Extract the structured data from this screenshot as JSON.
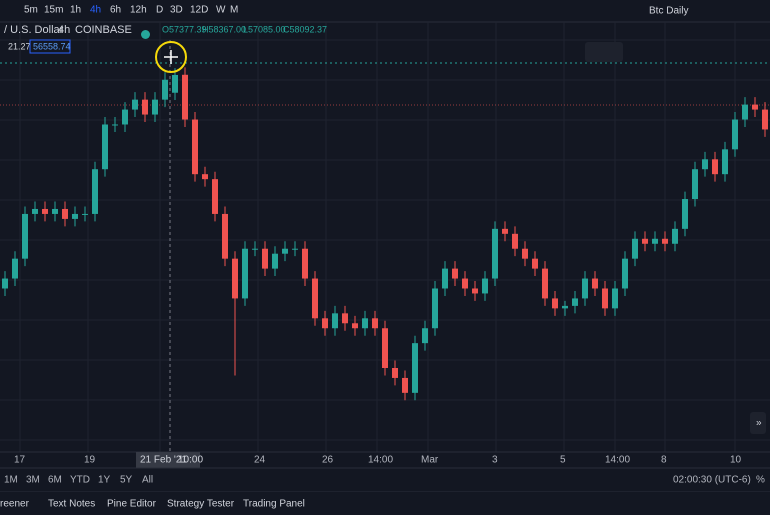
{
  "toolbar": {
    "timeframes": [
      "5m",
      "15m",
      "1h",
      "4h",
      "6h",
      "12h",
      "D",
      "3D",
      "12D",
      "W",
      "M"
    ],
    "layout_name": "Btc Daily"
  },
  "legend": {
    "symbol": "/ U.S. Dollar",
    "interval": "4h",
    "exchange": "COINBASE",
    "open": "O57377.39",
    "high": "H58367.00",
    "low": "L57085.00",
    "close": "C58092.37",
    "indicator_value": "21.27",
    "indicator_price": "56558.74"
  },
  "chart": {
    "type": "candlestick",
    "up_color": "#26a69a",
    "down_color": "#ef5350",
    "ylim": [
      43000,
      59500
    ],
    "candles": [
      [
        49500,
        50200,
        49200,
        49900
      ],
      [
        49900,
        51000,
        49600,
        50700
      ],
      [
        50700,
        52800,
        50400,
        52500
      ],
      [
        52500,
        53000,
        52200,
        52700
      ],
      [
        52700,
        53000,
        52200,
        52500
      ],
      [
        52500,
        53000,
        52200,
        52700
      ],
      [
        52700,
        53000,
        52000,
        52300
      ],
      [
        52300,
        52800,
        52000,
        52500
      ],
      [
        52500,
        52800,
        52200,
        52500
      ],
      [
        52500,
        54600,
        52200,
        54300
      ],
      [
        54300,
        56400,
        54000,
        56100
      ],
      [
        56100,
        56400,
        55800,
        56100
      ],
      [
        56100,
        57000,
        55800,
        56700
      ],
      [
        56700,
        57400,
        56400,
        57100
      ],
      [
        57100,
        57400,
        56200,
        56500
      ],
      [
        56500,
        57400,
        56200,
        57100
      ],
      [
        57100,
        58200,
        56800,
        57900
      ],
      [
        57377.39,
        58367,
        57085,
        58092.37
      ],
      [
        58100,
        58400,
        56000,
        56300
      ],
      [
        56300,
        56600,
        53800,
        54100
      ],
      [
        54100,
        54400,
        53600,
        53900
      ],
      [
        53900,
        54200,
        52200,
        52500
      ],
      [
        52500,
        52800,
        50400,
        50700
      ],
      [
        50700,
        51000,
        46000,
        49100
      ],
      [
        49100,
        51400,
        48800,
        51100
      ],
      [
        51100,
        51400,
        50800,
        51100
      ],
      [
        51100,
        51400,
        50000,
        50300
      ],
      [
        50300,
        51200,
        50000,
        50900
      ],
      [
        50900,
        51400,
        50600,
        51100
      ],
      [
        51100,
        51400,
        50800,
        51100
      ],
      [
        51100,
        51400,
        49600,
        49900
      ],
      [
        49900,
        50200,
        48000,
        48300
      ],
      [
        48300,
        48600,
        47600,
        47900
      ],
      [
        47900,
        48800,
        47600,
        48500
      ],
      [
        48500,
        48800,
        47800,
        48100
      ],
      [
        48100,
        48400,
        47600,
        47900
      ],
      [
        47900,
        48600,
        47600,
        48300
      ],
      [
        48300,
        48600,
        47600,
        47900
      ],
      [
        47900,
        48200,
        46000,
        46300
      ],
      [
        46300,
        46600,
        45600,
        45900
      ],
      [
        45900,
        46200,
        45000,
        45300
      ],
      [
        45300,
        47600,
        45000,
        47300
      ],
      [
        47300,
        48200,
        47000,
        47900
      ],
      [
        47900,
        49800,
        47600,
        49500
      ],
      [
        49500,
        50600,
        49200,
        50300
      ],
      [
        50300,
        50600,
        49600,
        49900
      ],
      [
        49900,
        50200,
        49200,
        49500
      ],
      [
        49500,
        49800,
        49000,
        49300
      ],
      [
        49300,
        50200,
        49000,
        49900
      ],
      [
        49900,
        52200,
        49600,
        51900
      ],
      [
        51900,
        52200,
        51400,
        51700
      ],
      [
        51700,
        52000,
        50800,
        51100
      ],
      [
        51100,
        51400,
        50400,
        50700
      ],
      [
        50700,
        51000,
        50000,
        50300
      ],
      [
        50300,
        50600,
        48800,
        49100
      ],
      [
        49100,
        49400,
        48400,
        48700
      ],
      [
        48700,
        49000,
        48400,
        48800
      ],
      [
        48800,
        49400,
        48500,
        49100
      ],
      [
        49100,
        50200,
        48800,
        49900
      ],
      [
        49900,
        50200,
        49200,
        49500
      ],
      [
        49500,
        49800,
        48400,
        48700
      ],
      [
        48700,
        49800,
        48400,
        49500
      ],
      [
        49500,
        51000,
        49200,
        50700
      ],
      [
        50700,
        51800,
        50400,
        51500
      ],
      [
        51500,
        51800,
        51000,
        51300
      ],
      [
        51300,
        51800,
        51000,
        51500
      ],
      [
        51500,
        51800,
        51000,
        51300
      ],
      [
        51300,
        52200,
        51000,
        51900
      ],
      [
        51900,
        53400,
        51600,
        53100
      ],
      [
        53100,
        54600,
        52800,
        54300
      ],
      [
        54300,
        55000,
        54000,
        54700
      ],
      [
        54700,
        55000,
        53800,
        54100
      ],
      [
        54100,
        55400,
        53800,
        55100
      ],
      [
        55100,
        56600,
        54800,
        56300
      ],
      [
        56300,
        57200,
        56000,
        56900
      ],
      [
        56900,
        57200,
        56400,
        56700
      ],
      [
        56700,
        57000,
        55600,
        55900
      ]
    ],
    "x_labels": [
      "17",
      "19",
      "21 Feb '21",
      "10:00",
      "24",
      "26",
      "14:00",
      "Mar",
      "3",
      "5",
      "14:00",
      "8",
      "10"
    ]
  },
  "range_bar": {
    "ranges": [
      "1M",
      "3M",
      "6M",
      "YTD",
      "1Y",
      "5Y",
      "All"
    ],
    "clock": "02:00:30 (UTC-6)",
    "percent": "%"
  },
  "bottom_tabs": [
    "reener",
    "Text Notes",
    "Pine Editor",
    "Strategy Tester",
    "Trading Panel"
  ]
}
